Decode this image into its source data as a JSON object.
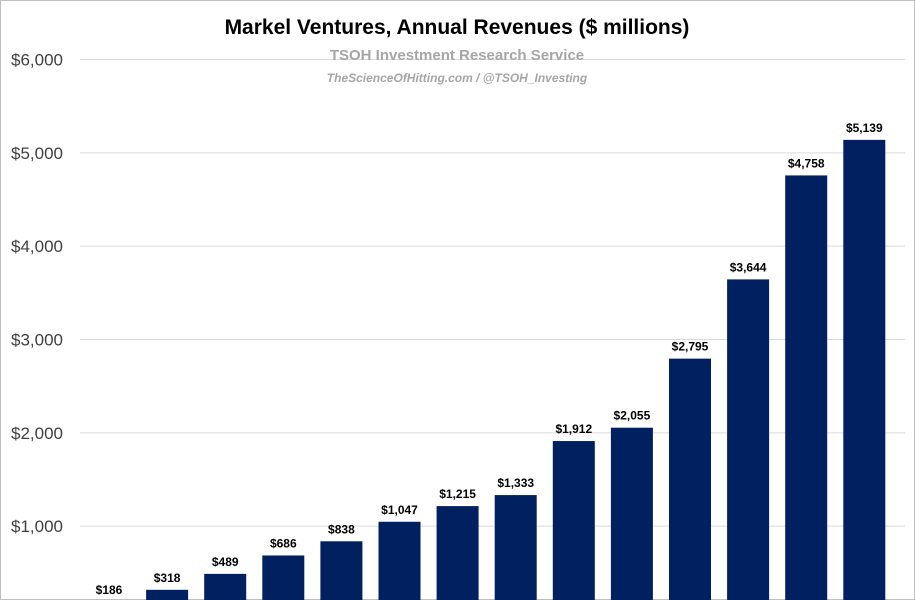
{
  "chart_data": {
    "type": "bar",
    "title": "Markel Ventures, Annual Revenues ($ millions)",
    "subtitle": "TSOH Investment Research Service",
    "credit": "TheScienceOfHitting.com / @TSOH_Investing",
    "xlabel": "",
    "ylabel": "",
    "ylim": [
      0,
      6000
    ],
    "y_ticks": [
      1000,
      2000,
      3000,
      4000,
      5000,
      6000
    ],
    "y_tick_labels": [
      "$1,000",
      "$2,000",
      "$3,000",
      "$4,000",
      "$5,000",
      "$6,000"
    ],
    "grid": true,
    "values": [
      186,
      318,
      489,
      686,
      838,
      1047,
      1215,
      1333,
      1912,
      2055,
      2795,
      3644,
      4758,
      5139
    ],
    "value_labels": [
      "$186",
      "$318",
      "$489",
      "$686",
      "$838",
      "$1,047",
      "$1,215",
      "$1,333",
      "$1,912",
      "$2,055",
      "$2,795",
      "$3,644",
      "$4,758",
      "$5,139"
    ],
    "bar_color": "#002060"
  }
}
